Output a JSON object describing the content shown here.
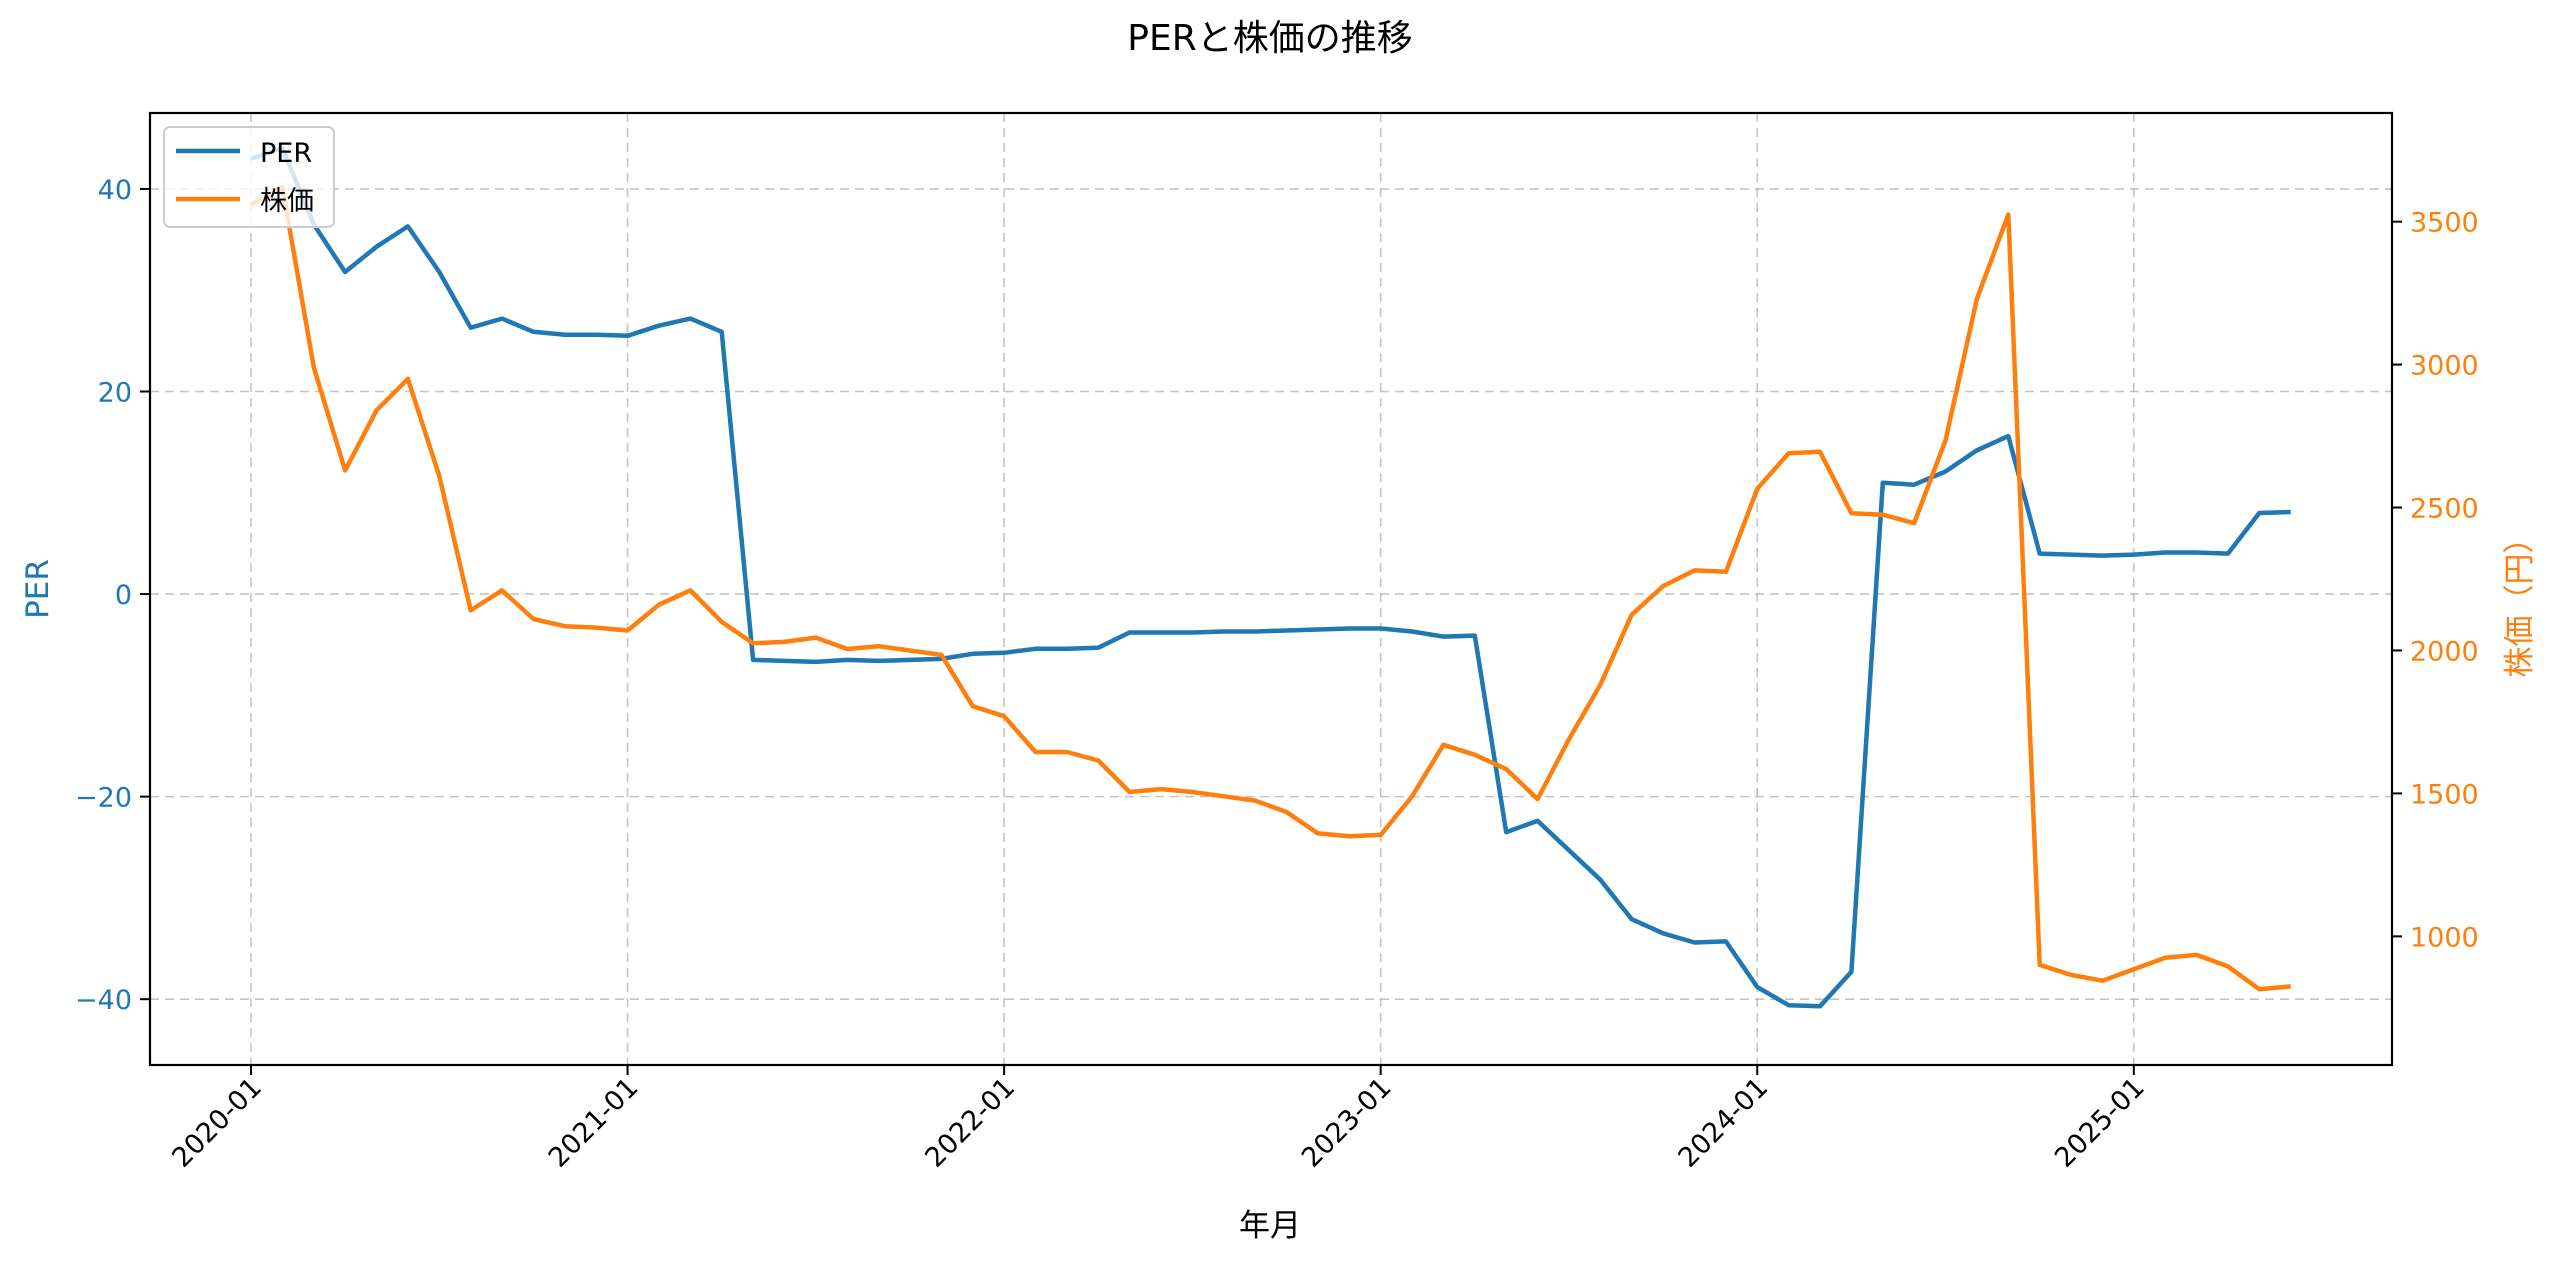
{
  "chart_data": {
    "type": "line",
    "title": "PERと株価の推移",
    "xlabel": "年月",
    "ylabel_left": "PER",
    "ylabel_right": "株価（円）",
    "x_tick_labels": [
      "2020-01",
      "2021-01",
      "2022-01",
      "2023-01",
      "2024-01",
      "2025-01"
    ],
    "x_tick_month_index": [
      0,
      12,
      24,
      36,
      48,
      60
    ],
    "left_ylim": [
      -46.5,
      47.5
    ],
    "left_yticks": [
      -40,
      -20,
      0,
      20,
      40
    ],
    "right_ylim": [
      550,
      3880
    ],
    "right_yticks": [
      1000,
      1500,
      2000,
      2500,
      3000,
      3500
    ],
    "x_months": [
      "2020-01",
      "2020-02",
      "2020-03",
      "2020-04",
      "2020-05",
      "2020-06",
      "2020-07",
      "2020-08",
      "2020-09",
      "2020-10",
      "2020-11",
      "2020-12",
      "2021-01",
      "2021-02",
      "2021-03",
      "2021-04",
      "2021-05",
      "2021-06",
      "2021-07",
      "2021-08",
      "2021-09",
      "2021-10",
      "2021-11",
      "2021-12",
      "2022-01",
      "2022-02",
      "2022-03",
      "2022-04",
      "2022-05",
      "2022-06",
      "2022-07",
      "2022-08",
      "2022-09",
      "2022-10",
      "2022-11",
      "2022-12",
      "2023-01",
      "2023-02",
      "2023-03",
      "2023-04",
      "2023-05",
      "2023-06",
      "2023-07",
      "2023-08",
      "2023-09",
      "2023-10",
      "2023-11",
      "2023-12",
      "2024-01",
      "2024-02",
      "2024-03",
      "2024-04",
      "2024-05",
      "2024-06",
      "2024-07",
      "2024-08",
      "2024-09",
      "2024-10",
      "2024-11",
      "2024-12",
      "2025-01",
      "2025-02",
      "2025-03",
      "2025-04",
      "2025-05",
      "2025-06"
    ],
    "grid": true,
    "legend_position": "upper left",
    "series": [
      {
        "name": "PER",
        "axis": "left",
        "color": "#1f77b4",
        "values": [
          43.0,
          44.0,
          36.5,
          31.8,
          34.3,
          36.3,
          31.8,
          26.3,
          27.2,
          25.9,
          25.6,
          25.6,
          25.5,
          26.5,
          27.2,
          25.9,
          -6.5,
          -6.6,
          -6.7,
          -6.5,
          -6.6,
          -6.5,
          -6.4,
          -5.9,
          -5.8,
          -5.4,
          -5.4,
          -5.3,
          -3.8,
          -3.8,
          -3.8,
          -3.7,
          -3.7,
          -3.6,
          -3.5,
          -3.4,
          -3.4,
          -3.7,
          -4.2,
          -4.1,
          -23.5,
          -22.4,
          -25.3,
          -28.2,
          -32.1,
          -33.5,
          -34.4,
          -34.3,
          -38.8,
          -40.6,
          -40.7,
          -37.3,
          11.0,
          10.8,
          12.1,
          14.2,
          15.6,
          4.0,
          3.9,
          3.8,
          3.9,
          4.1,
          4.1,
          4.0,
          8.0,
          8.1
        ]
      },
      {
        "name": "株価",
        "axis": "right",
        "color": "#ff7f0e",
        "values": [
          3560,
          3620,
          2990,
          2630,
          2840,
          2950,
          2610,
          2140,
          2210,
          2110,
          2085,
          2080,
          2070,
          2160,
          2210,
          2100,
          2025,
          2030,
          2045,
          2005,
          2015,
          2000,
          1985,
          1805,
          1770,
          1645,
          1645,
          1615,
          1505,
          1515,
          1505,
          1490,
          1475,
          1435,
          1360,
          1350,
          1355,
          1490,
          1670,
          1635,
          1585,
          1480,
          1690,
          1880,
          2125,
          2225,
          2280,
          2275,
          2565,
          2690,
          2695,
          2480,
          2475,
          2445,
          2735,
          3230,
          3525,
          900,
          865,
          845,
          885,
          925,
          935,
          895,
          815,
          825
        ]
      }
    ]
  },
  "legend": {
    "items": [
      {
        "label": "PER",
        "color": "#1f77b4"
      },
      {
        "label": "株価",
        "color": "#ff7f0e"
      }
    ]
  },
  "colors": {
    "left_axis": "#1f77b4",
    "right_axis": "#ff7f0e",
    "grid": "#b0b0b0",
    "frame": "#000000"
  }
}
